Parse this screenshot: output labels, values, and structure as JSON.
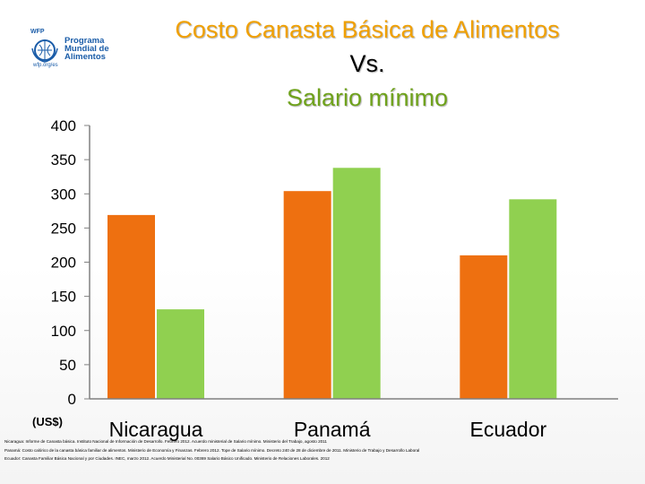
{
  "logo": {
    "wfp": "WFP",
    "name_lines": [
      "Programa",
      "Mundial de",
      "Alimentos"
    ],
    "url": "wfp.org/es"
  },
  "title": {
    "line1": "Costo Canasta Básica de Alimentos",
    "line2": "Vs.",
    "line3": "Salario mínimo"
  },
  "unit_label": "(US$)",
  "colors": {
    "canasta": "#ee7010",
    "salario": "#90d050",
    "title_orange": "#f0a000",
    "title_green": "#6fa21c"
  },
  "chart_data": {
    "type": "bar",
    "title": "Costo Canasta Básica de Alimentos Vs. Salario mínimo",
    "categories": [
      "Nicaragua",
      "Panamá",
      "Ecuador"
    ],
    "series": [
      {
        "values": [
          269,
          304,
          210
        ]
      },
      {
        "values": [
          131,
          338,
          292
        ]
      }
    ],
    "ylim": [
      0,
      400
    ],
    "yticks": [
      "400",
      "350",
      "300",
      "250",
      "200",
      "150",
      "100",
      "50",
      "0"
    ],
    "ylabel": "(US$)",
    "grid": false,
    "legend": "none"
  },
  "sources": [
    "Nicaragua: Informe de Canasta básica. Instituto Nacional de Información de Desarrollo. Febrero 2012. Acuerdo ministerial de Salario mínimo. Ministerio del Trabajo, agosto 2011",
    "Panamá: Costo calórico de la canasta básica familiar de alimentos. Ministerio de Economía y Finanzas. Febrero 2012. Tope de Salario mínimo. Decreto 240 de 28 de diciembre de 2011. Ministerio de Trabajo y Desarrollo Laboral",
    "Ecuador: Canasta Familiar Básica Nacional y por Ciudades. INEC, marzo 2012. Acuerdo Ministerial No. 00369 Salario Básico Unificado. Ministerio de Relaciones Laborales. 2012"
  ]
}
